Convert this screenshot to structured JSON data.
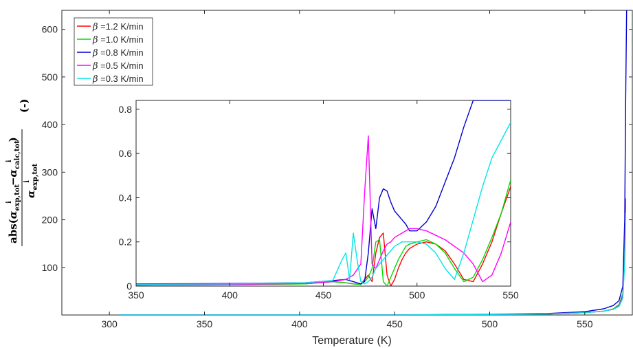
{
  "chart_data": [
    {
      "type": "line",
      "ylabel": {
        "prefix": "abs(",
        "num": "α",
        "exp_sub": "exp,tot",
        "calc_sub": "calc,tot",
        "sup": "i",
        "minus": "−",
        "close": ")",
        "unit": "(-)"
      },
      "xlabel": "Temperature (K)",
      "xlim": [
        275,
        575
      ],
      "ylim": [
        0,
        640
      ],
      "xticks": [
        "300",
        "350",
        "400",
        "450",
        "500",
        "550"
      ],
      "yticks": [
        "100",
        "200",
        "300",
        "400",
        "500",
        "600"
      ],
      "xtick_values": [
        300,
        350,
        400,
        450,
        500,
        550
      ],
      "ytick_values": [
        100,
        200,
        300,
        400,
        500,
        600
      ],
      "grid": false,
      "legend_position": "top-left",
      "series": [
        {
          "name": "β =1.2 K/min",
          "legend_symbol": "β",
          "legend_rest": " =1.2 K/min",
          "color": "#ff0000",
          "x": [
            305,
            400,
            450,
            500,
            530,
            550,
            560,
            565,
            568,
            570,
            571,
            571.5
          ],
          "y": [
            0,
            0,
            0.1,
            1,
            2,
            5,
            8,
            12,
            20,
            40,
            120,
            230
          ]
        },
        {
          "name": "β =1.0 K/min",
          "legend_symbol": "β",
          "legend_rest": " =1.0 K/min",
          "color": "#00dd00",
          "x": [
            305,
            400,
            450,
            500,
            530,
            550,
            560,
            565,
            568,
            570,
            571,
            571.5
          ],
          "y": [
            0,
            0,
            0.1,
            1,
            2,
            5,
            8,
            13,
            22,
            45,
            120,
            240
          ]
        },
        {
          "name": "β =0.8 K/min",
          "legend_symbol": "β",
          "legend_rest": " =0.8 K/min",
          "color": "#0000cc",
          "x": [
            305,
            400,
            450,
            500,
            530,
            550,
            560,
            565,
            568,
            570,
            571,
            571.5,
            572
          ],
          "y": [
            0,
            0,
            0.2,
            1.5,
            3,
            7,
            13,
            20,
            30,
            60,
            200,
            450,
            640
          ]
        },
        {
          "name": "β =0.5 K/min",
          "legend_symbol": "β",
          "legend_rest": " =0.5 K/min",
          "color": "#ff00ff",
          "x": [
            305,
            400,
            450,
            500,
            530,
            550,
            560,
            565,
            568,
            570,
            571,
            571.5
          ],
          "y": [
            0,
            0,
            0.1,
            1,
            2,
            5,
            8,
            12,
            20,
            40,
            120,
            245
          ]
        },
        {
          "name": "β =0.3 K/min",
          "legend_symbol": "β",
          "legend_rest": " =0.3 K/min",
          "color": "#00e5e5",
          "x": [
            305,
            400,
            450,
            500,
            530,
            550,
            560,
            565,
            568,
            570,
            571,
            571.5
          ],
          "y": [
            0,
            0,
            0.1,
            1,
            2,
            5,
            8,
            12,
            18,
            35,
            110,
            215
          ]
        }
      ]
    },
    {
      "type": "line",
      "role": "inset",
      "xlim": [
        350,
        550
      ],
      "ylim": [
        0,
        0.84
      ],
      "xticks": [
        "350",
        "400",
        "450",
        "500",
        "550"
      ],
      "yticks": [
        "0",
        "0.2",
        "0.4",
        "0.6",
        "0.8"
      ],
      "xtick_values": [
        350,
        400,
        450,
        500,
        550
      ],
      "ytick_values": [
        0,
        0.2,
        0.4,
        0.6,
        0.8
      ],
      "grid": false,
      "series": [
        {
          "name": "β =1.2 K/min",
          "color": "#ff0000",
          "x": [
            350,
            400,
            440,
            455,
            462,
            466,
            470,
            472,
            474,
            476,
            478,
            480,
            482,
            484,
            486,
            488,
            490,
            492,
            494,
            496,
            500,
            505,
            510,
            515,
            520,
            525,
            530,
            535,
            540,
            545,
            550
          ],
          "y": [
            0.005,
            0.007,
            0.01,
            0.02,
            0.015,
            0.01,
            0.008,
            0.03,
            0.05,
            0.02,
            0.15,
            0.22,
            0.24,
            0.05,
            0.0,
            0.03,
            0.08,
            0.12,
            0.15,
            0.17,
            0.19,
            0.2,
            0.19,
            0.16,
            0.1,
            0.03,
            0.02,
            0.1,
            0.2,
            0.33,
            0.45
          ]
        },
        {
          "name": "β =1.0 K/min",
          "color": "#00dd00",
          "x": [
            350,
            400,
            440,
            455,
            462,
            466,
            470,
            472,
            474,
            476,
            478,
            480,
            482,
            484,
            486,
            488,
            490,
            492,
            494,
            496,
            500,
            505,
            510,
            515,
            520,
            525,
            530,
            535,
            540,
            545,
            550
          ],
          "y": [
            0.005,
            0.007,
            0.01,
            0.02,
            0.015,
            0.01,
            0.008,
            0.02,
            0.04,
            0.08,
            0.2,
            0.21,
            0.02,
            0.0,
            0.04,
            0.08,
            0.12,
            0.15,
            0.18,
            0.19,
            0.2,
            0.21,
            0.19,
            0.15,
            0.08,
            0.02,
            0.04,
            0.12,
            0.22,
            0.33,
            0.48
          ]
        },
        {
          "name": "β =0.8 K/min",
          "color": "#0000cc",
          "x": [
            350,
            400,
            440,
            455,
            462,
            466,
            470,
            472,
            474,
            476,
            478,
            480,
            482,
            484,
            486,
            488,
            490,
            492,
            494,
            496,
            500,
            505,
            510,
            515,
            520,
            525,
            530,
            535,
            540,
            545,
            550
          ],
          "y": [
            0.01,
            0.012,
            0.015,
            0.025,
            0.03,
            0.02,
            0.01,
            0.02,
            0.15,
            0.35,
            0.26,
            0.4,
            0.44,
            0.43,
            0.38,
            0.34,
            0.32,
            0.3,
            0.28,
            0.25,
            0.25,
            0.29,
            0.36,
            0.47,
            0.58,
            0.72,
            0.86,
            0.9,
            0.9,
            0.9,
            0.9
          ]
        },
        {
          "name": "β =0.5 K/min",
          "color": "#ff00ff",
          "x": [
            350,
            400,
            440,
            455,
            462,
            466,
            470,
            472,
            474,
            476,
            478,
            480,
            482,
            484,
            486,
            488,
            490,
            492,
            494,
            496,
            500,
            505,
            510,
            515,
            520,
            525,
            530,
            535,
            540,
            545,
            550
          ],
          "y": [
            0.005,
            0.008,
            0.012,
            0.02,
            0.03,
            0.05,
            0.1,
            0.42,
            0.68,
            0.1,
            0.08,
            0.12,
            0.16,
            0.19,
            0.2,
            0.22,
            0.23,
            0.24,
            0.25,
            0.26,
            0.26,
            0.25,
            0.23,
            0.21,
            0.18,
            0.15,
            0.1,
            0.02,
            0.05,
            0.15,
            0.29
          ]
        },
        {
          "name": "β =0.3 K/min",
          "color": "#00e5e5",
          "x": [
            350,
            400,
            440,
            455,
            460,
            462,
            464,
            466,
            468,
            470,
            472,
            474,
            476,
            478,
            480,
            482,
            484,
            486,
            488,
            490,
            492,
            494,
            496,
            500,
            505,
            510,
            515,
            520,
            525,
            530,
            535,
            540,
            545,
            550
          ],
          "y": [
            0.008,
            0.01,
            0.015,
            0.025,
            0.12,
            0.15,
            0.03,
            0.24,
            0.12,
            0.02,
            0.01,
            0.02,
            0.04,
            0.08,
            0.1,
            0.12,
            0.14,
            0.16,
            0.18,
            0.19,
            0.2,
            0.2,
            0.2,
            0.2,
            0.19,
            0.15,
            0.08,
            0.03,
            0.15,
            0.3,
            0.45,
            0.58,
            0.66,
            0.74
          ]
        }
      ]
    }
  ]
}
